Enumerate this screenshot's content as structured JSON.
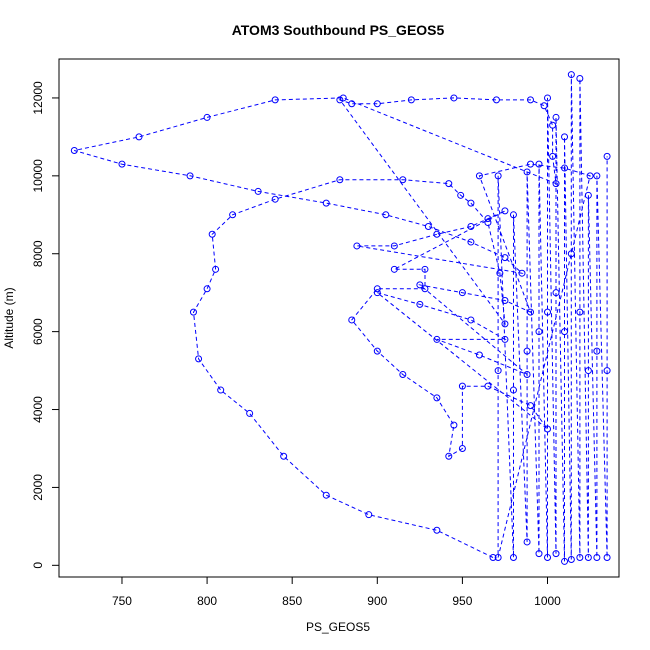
{
  "chart_data": {
    "type": "scatter",
    "title": "ATOM3 Southbound PS_GEOS5",
    "xlabel": "PS_GEOS5",
    "ylabel": "Altitude (m)",
    "xlim": [
      713,
      1042
    ],
    "ylim": [
      -300,
      13000
    ],
    "xticks": [
      750,
      800,
      850,
      900,
      950,
      1000
    ],
    "yticks": [
      0,
      2000,
      4000,
      6000,
      8000,
      10000,
      12000
    ],
    "marker": "open-circle",
    "color": "#0000ff",
    "grid": false,
    "series": [
      {
        "values": [
          {
            "x": 968,
            "y": 200
          },
          {
            "x": 935,
            "y": 900
          },
          {
            "x": 895,
            "y": 1300
          },
          {
            "x": 870,
            "y": 1800
          },
          {
            "x": 845,
            "y": 2800
          },
          {
            "x": 825,
            "y": 3900
          },
          {
            "x": 808,
            "y": 4500
          },
          {
            "x": 795,
            "y": 5300
          },
          {
            "x": 792,
            "y": 6500
          },
          {
            "x": 800,
            "y": 7100
          },
          {
            "x": 805,
            "y": 7600
          },
          {
            "x": 803,
            "y": 8500
          },
          {
            "x": 815,
            "y": 9000
          },
          {
            "x": 840,
            "y": 9400
          },
          {
            "x": 878,
            "y": 9900
          },
          {
            "x": 915,
            "y": 9900
          },
          {
            "x": 942,
            "y": 9800
          },
          {
            "x": 949,
            "y": 9500
          },
          {
            "x": 955,
            "y": 9300
          },
          {
            "x": 965,
            "y": 8800
          },
          {
            "x": 972,
            "y": 7500
          },
          {
            "x": 975,
            "y": 6200
          },
          {
            "x": 878,
            "y": 11950
          },
          {
            "x": 885,
            "y": 11850
          },
          {
            "x": 900,
            "y": 11850
          },
          {
            "x": 920,
            "y": 11950
          },
          {
            "x": 945,
            "y": 12000
          },
          {
            "x": 970,
            "y": 11950
          },
          {
            "x": 990,
            "y": 11950
          },
          {
            "x": 998,
            "y": 11800
          },
          {
            "x": 1003,
            "y": 11300
          },
          {
            "x": 1003,
            "y": 10500
          },
          {
            "x": 1005,
            "y": 9800
          },
          {
            "x": 880,
            "y": 12000
          },
          {
            "x": 840,
            "y": 11950
          },
          {
            "x": 800,
            "y": 11500
          },
          {
            "x": 760,
            "y": 11000
          },
          {
            "x": 722,
            "y": 10650
          },
          {
            "x": 750,
            "y": 10300
          },
          {
            "x": 790,
            "y": 10000
          },
          {
            "x": 830,
            "y": 9600
          },
          {
            "x": 870,
            "y": 9300
          },
          {
            "x": 905,
            "y": 9000
          },
          {
            "x": 930,
            "y": 8700
          },
          {
            "x": 955,
            "y": 8300
          },
          {
            "x": 975,
            "y": 7900
          },
          {
            "x": 985,
            "y": 7500
          },
          {
            "x": 888,
            "y": 8200
          },
          {
            "x": 910,
            "y": 8200
          },
          {
            "x": 935,
            "y": 8500
          },
          {
            "x": 955,
            "y": 8700
          },
          {
            "x": 965,
            "y": 8900
          },
          {
            "x": 975,
            "y": 9100
          },
          {
            "x": 910,
            "y": 7600
          },
          {
            "x": 928,
            "y": 7600
          },
          {
            "x": 928,
            "y": 7100
          },
          {
            "x": 900,
            "y": 7100
          },
          {
            "x": 885,
            "y": 6300
          },
          {
            "x": 900,
            "y": 5500
          },
          {
            "x": 915,
            "y": 4900
          },
          {
            "x": 935,
            "y": 4300
          },
          {
            "x": 945,
            "y": 3600
          },
          {
            "x": 942,
            "y": 2800
          },
          {
            "x": 950,
            "y": 3000
          },
          {
            "x": 950,
            "y": 4600
          },
          {
            "x": 965,
            "y": 4600
          },
          {
            "x": 990,
            "y": 4100
          },
          {
            "x": 1000,
            "y": 3500
          },
          {
            "x": 900,
            "y": 7000
          },
          {
            "x": 925,
            "y": 6700
          },
          {
            "x": 955,
            "y": 6300
          },
          {
            "x": 975,
            "y": 5800
          },
          {
            "x": 935,
            "y": 5800
          },
          {
            "x": 960,
            "y": 5400
          },
          {
            "x": 988,
            "y": 4900
          },
          {
            "x": 925,
            "y": 7200
          },
          {
            "x": 950,
            "y": 7000
          },
          {
            "x": 975,
            "y": 6800
          },
          {
            "x": 990,
            "y": 6500
          },
          {
            "x": 960,
            "y": 10000
          },
          {
            "x": 990,
            "y": 10300
          },
          {
            "x": 1010,
            "y": 10200
          },
          {
            "x": 1025,
            "y": 10000
          },
          {
            "x": 971,
            "y": 200
          },
          {
            "x": 971,
            "y": 5000
          },
          {
            "x": 971,
            "y": 10000
          },
          {
            "x": 980,
            "y": 200
          },
          {
            "x": 980,
            "y": 4500
          },
          {
            "x": 980,
            "y": 9000
          },
          {
            "x": 988,
            "y": 600
          },
          {
            "x": 988,
            "y": 5500
          },
          {
            "x": 988,
            "y": 10100
          },
          {
            "x": 995,
            "y": 300
          },
          {
            "x": 995,
            "y": 6000
          },
          {
            "x": 995,
            "y": 10300
          },
          {
            "x": 1000,
            "y": 200
          },
          {
            "x": 1000,
            "y": 6500
          },
          {
            "x": 1000,
            "y": 12000
          },
          {
            "x": 1005,
            "y": 300
          },
          {
            "x": 1005,
            "y": 7000
          },
          {
            "x": 1005,
            "y": 11500
          },
          {
            "x": 1010,
            "y": 100
          },
          {
            "x": 1010,
            "y": 6000
          },
          {
            "x": 1010,
            "y": 11000
          },
          {
            "x": 1014,
            "y": 150
          },
          {
            "x": 1014,
            "y": 8000
          },
          {
            "x": 1014,
            "y": 12600
          },
          {
            "x": 1019,
            "y": 200
          },
          {
            "x": 1019,
            "y": 6500
          },
          {
            "x": 1019,
            "y": 12500
          },
          {
            "x": 1024,
            "y": 200
          },
          {
            "x": 1024,
            "y": 5000
          },
          {
            "x": 1024,
            "y": 9500
          },
          {
            "x": 1029,
            "y": 200
          },
          {
            "x": 1029,
            "y": 5500
          },
          {
            "x": 1029,
            "y": 10000
          },
          {
            "x": 1035,
            "y": 200
          },
          {
            "x": 1035,
            "y": 5000
          },
          {
            "x": 1035,
            "y": 10500
          }
        ]
      }
    ]
  }
}
